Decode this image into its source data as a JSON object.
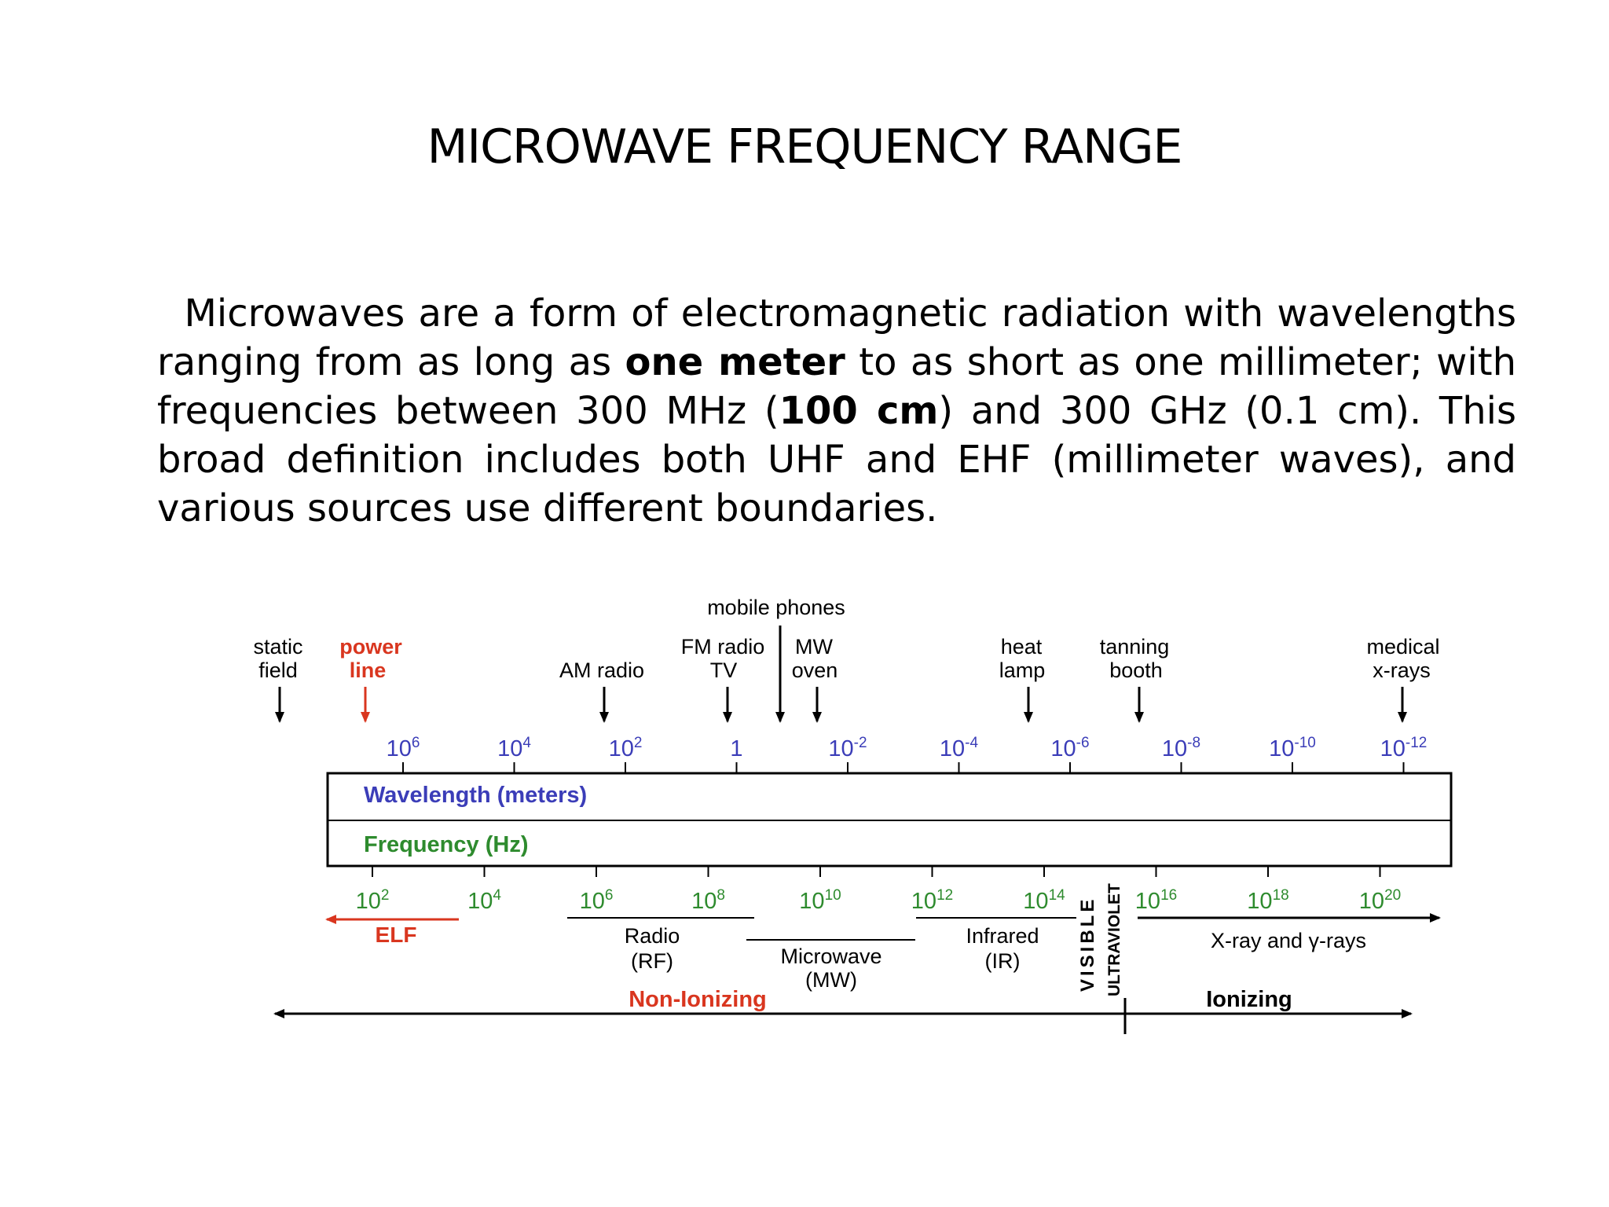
{
  "title": "MICROWAVE FREQUENCY RANGE",
  "paragraph": {
    "p1": "Microwaves are a form of electromagnetic radiation with wavelengths ranging from as long as ",
    "b1": "one meter",
    "p2": " to as short as one millimeter; with frequencies between 300 MHz (",
    "b2": "100 cm",
    "p3": ") and 300 GHz (0.1 cm). This broad definition includes both UHF and EHF (millimeter waves), and various sources use different boundaries."
  },
  "diagram": {
    "sources": {
      "static_field": [
        "static",
        "field"
      ],
      "power_line": [
        "power",
        "line"
      ],
      "am_radio": "AM radio",
      "fm_radio_tv": [
        "FM radio",
        "TV"
      ],
      "mobile_phones": "mobile phones",
      "mw_oven": [
        "MW",
        "oven"
      ],
      "heat_lamp": [
        "heat",
        "lamp"
      ],
      "tanning_booth": [
        "tanning",
        "booth"
      ],
      "medical_xrays": [
        "medical",
        "x-rays"
      ]
    },
    "wavelength_ticks": [
      {
        "base": "10",
        "exp": "6"
      },
      {
        "base": "10",
        "exp": "4"
      },
      {
        "base": "10",
        "exp": "2"
      },
      {
        "base": "1",
        "exp": ""
      },
      {
        "base": "10",
        "exp": "-2"
      },
      {
        "base": "10",
        "exp": "-4"
      },
      {
        "base": "10",
        "exp": "-6"
      },
      {
        "base": "10",
        "exp": "-8"
      },
      {
        "base": "10",
        "exp": "-10"
      },
      {
        "base": "10",
        "exp": "-12"
      }
    ],
    "frequency_ticks": [
      {
        "base": "10",
        "exp": "2"
      },
      {
        "base": "10",
        "exp": "4"
      },
      {
        "base": "10",
        "exp": "6"
      },
      {
        "base": "10",
        "exp": "8"
      },
      {
        "base": "10",
        "exp": "10"
      },
      {
        "base": "10",
        "exp": "12"
      },
      {
        "base": "10",
        "exp": "14"
      },
      {
        "base": "10",
        "exp": "16"
      },
      {
        "base": "10",
        "exp": "18"
      },
      {
        "base": "10",
        "exp": "20"
      }
    ],
    "wavelength_label": "Wavelength (meters)",
    "frequency_label": "Frequency (Hz)",
    "bands": {
      "elf": "ELF",
      "radio": [
        "Radio",
        "(RF)"
      ],
      "microwave": [
        "Microwave",
        "(MW)"
      ],
      "infrared": [
        "Infrared",
        "(IR)"
      ],
      "visible": "VISIBLE",
      "ultraviolet": "ULTRAVIOLET",
      "xray": "X-ray and γ-rays"
    },
    "non_ionizing": "Non-Ionizing",
    "ionizing": "Ionizing",
    "colors": {
      "wavelength": "#3b3db8",
      "frequency": "#2e8b2e",
      "red": "#d9361f",
      "black": "#000000"
    }
  }
}
